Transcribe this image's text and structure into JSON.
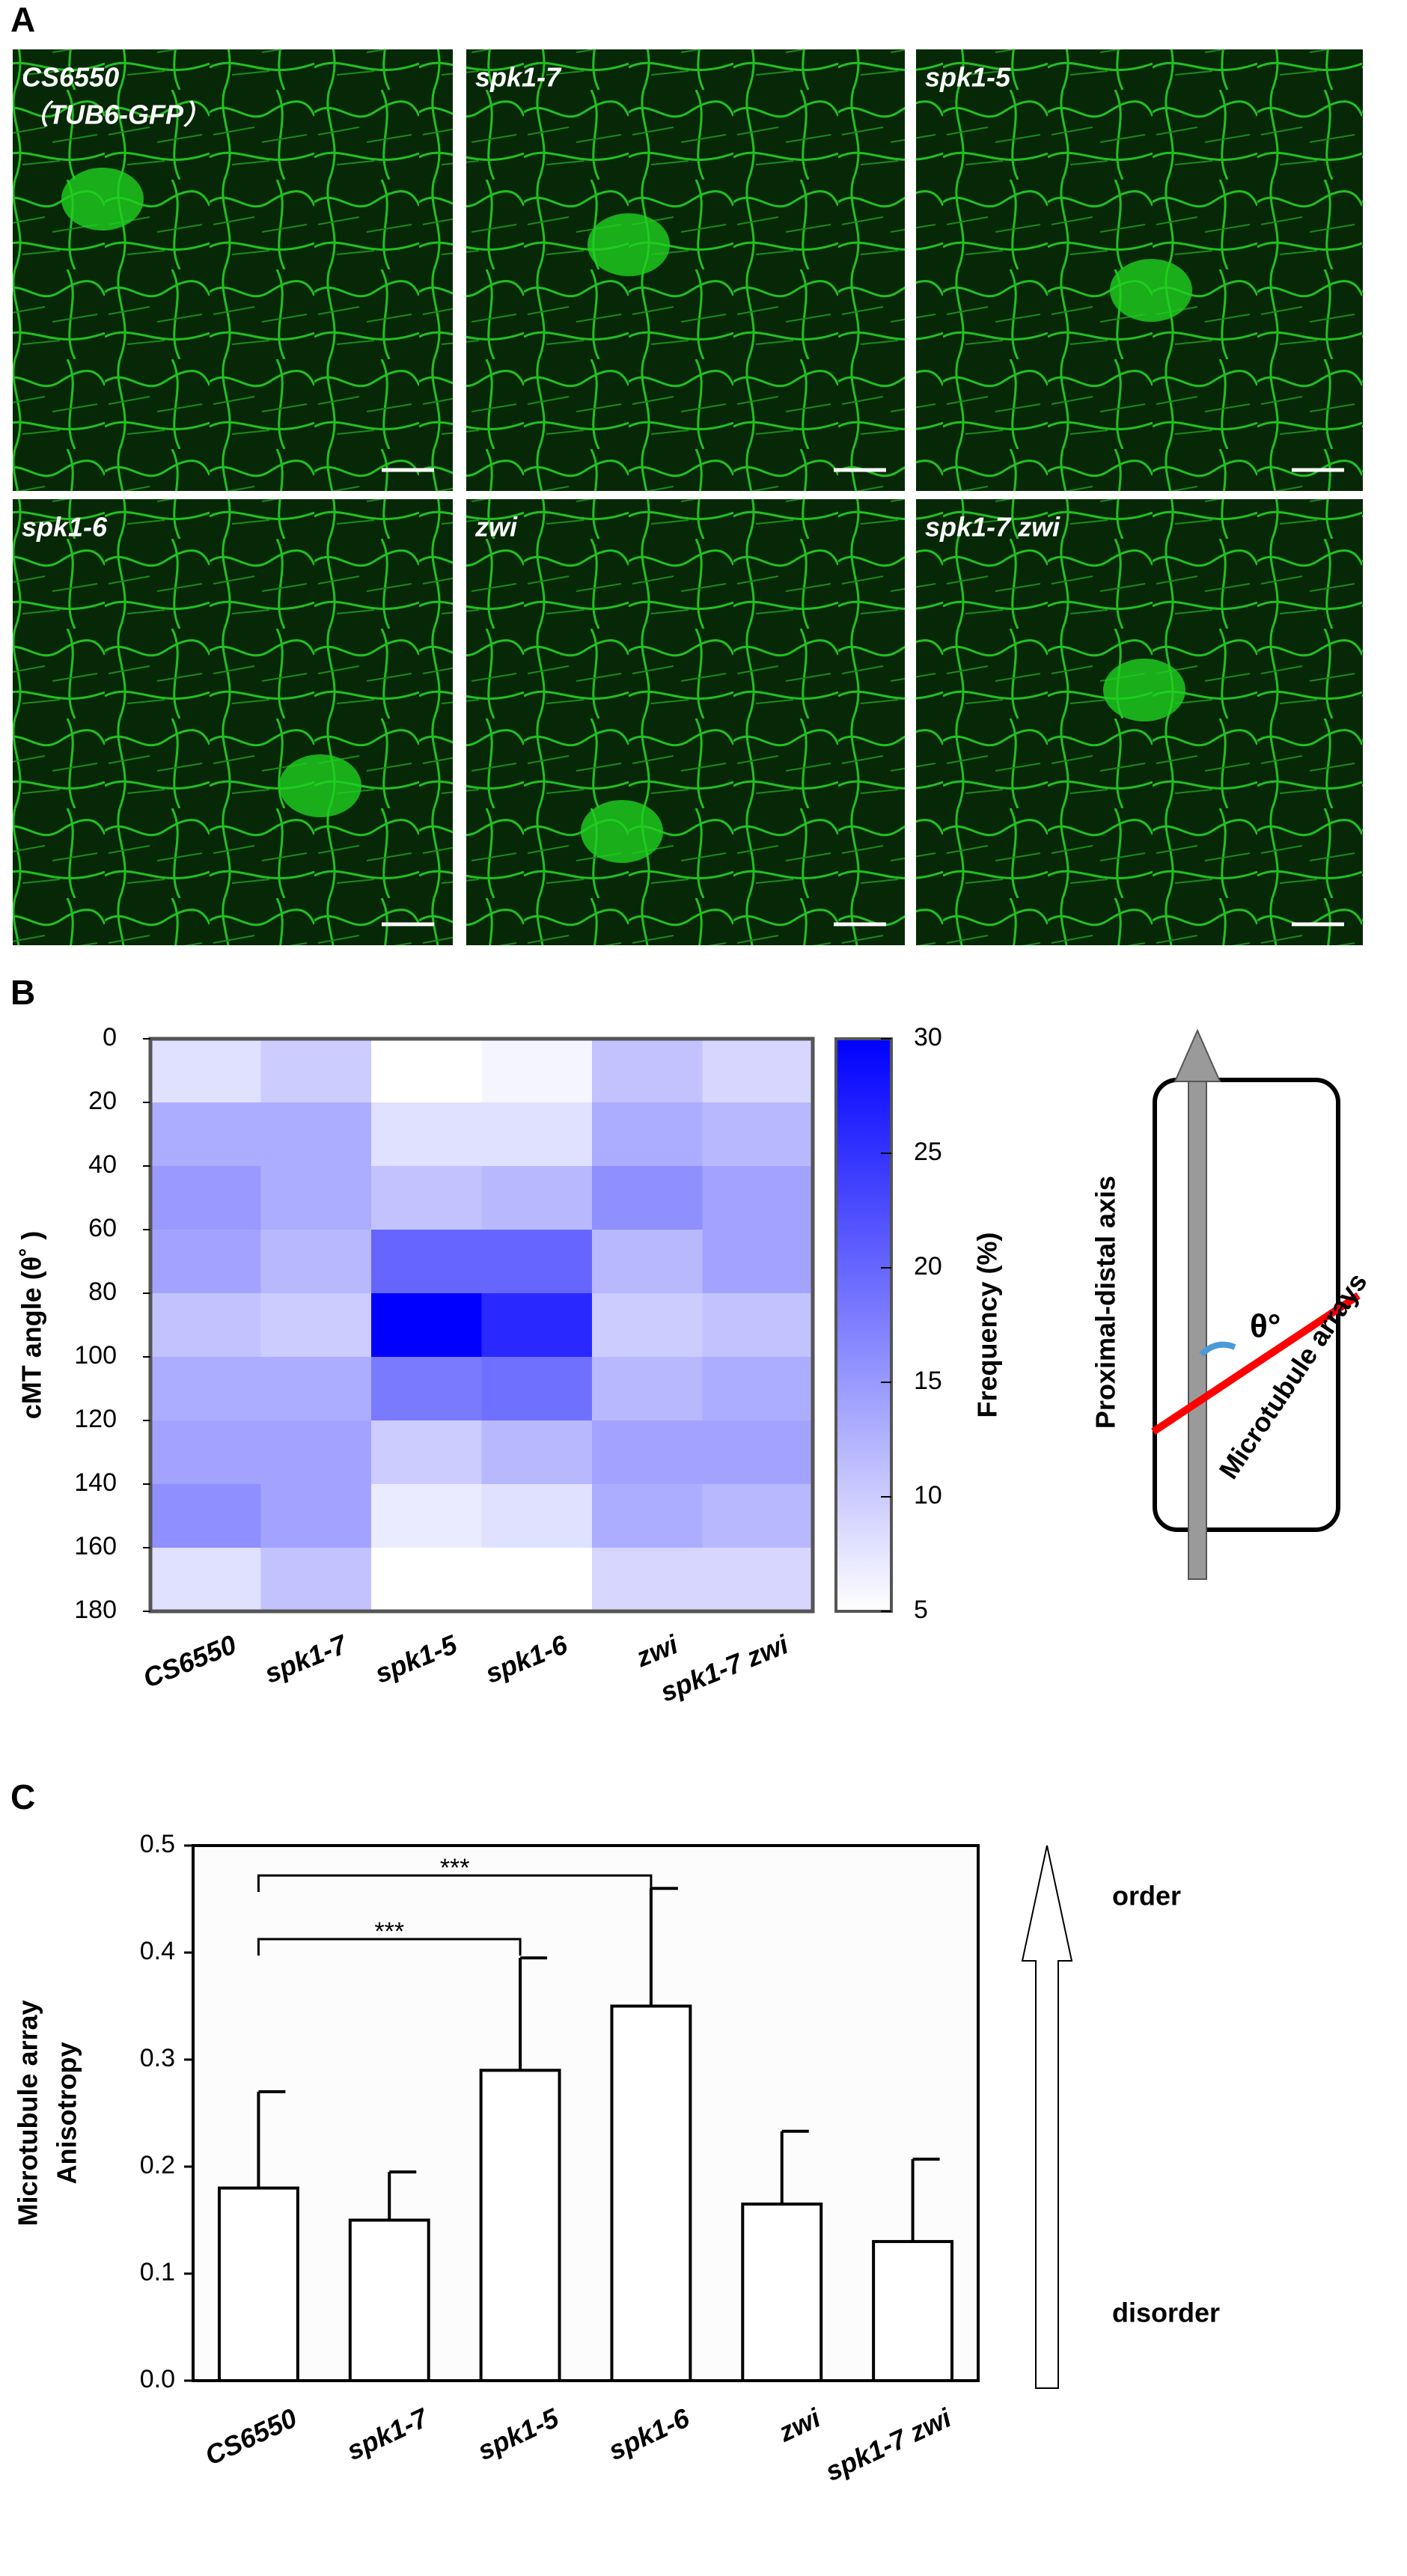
{
  "panel_a": {
    "label": "A",
    "images": [
      {
        "label": "CS6550",
        "sublabel": "（TUB6-GFP）"
      },
      {
        "label": "spk1-7"
      },
      {
        "label": "spk1-5"
      },
      {
        "label": "spk1-6"
      },
      {
        "label": "zwi"
      },
      {
        "label": "spk1-7 zwi"
      }
    ]
  },
  "panel_b_label": "B",
  "panel_c_label": "C",
  "panel_b_diagram": {
    "axis_label": "Proximal-distal axis",
    "array_label": "Microtubule arrays",
    "angle_label": "θ°"
  },
  "chart_data": [
    {
      "type": "heatmap",
      "categories": [
        "CS6550",
        "spk1-7",
        "spk1-5",
        "spk1-6",
        "zwi",
        "spk1-7 zwi"
      ],
      "ylabel": "cMT angle (θ˚ )",
      "ylim": [
        0,
        180
      ],
      "yticks": [
        0,
        20,
        40,
        60,
        80,
        100,
        120,
        140,
        160,
        180
      ],
      "values": [
        [
          8,
          10,
          5,
          6,
          11,
          9
        ],
        [
          13,
          13,
          8,
          8,
          13,
          12
        ],
        [
          15,
          13,
          11,
          12,
          16,
          14
        ],
        [
          14,
          12,
          20,
          20,
          12,
          14
        ],
        [
          11,
          10,
          30,
          26,
          10,
          11
        ],
        [
          13,
          13,
          18,
          19,
          12,
          13
        ],
        [
          14,
          14,
          10,
          12,
          14,
          14
        ],
        [
          16,
          14,
          7,
          8,
          13,
          12
        ],
        [
          8,
          11,
          5,
          5,
          9,
          9
        ]
      ],
      "colorbar_label": "Frequency (%)",
      "zlim": [
        5,
        30
      ],
      "zticks": [
        5,
        10,
        15,
        20,
        25,
        30
      ],
      "colors": [
        "#ffffff",
        "#0000ff"
      ]
    },
    {
      "type": "bar",
      "categories": [
        "CS6550",
        "spk1-7",
        "spk1-5",
        "spk1-6",
        "zwi",
        "spk1-7 zwi"
      ],
      "values": [
        0.18,
        0.15,
        0.29,
        0.35,
        0.165,
        0.13
      ],
      "errors": [
        0.09,
        0.045,
        0.105,
        0.11,
        0.068,
        0.077
      ],
      "color": "#ffffff",
      "ylabel": [
        "Microtubule  array",
        "Anisotropy"
      ],
      "ylim": [
        0,
        0.5
      ],
      "yticks": [
        {
          "value": 0,
          "label": "0.0"
        },
        0.1,
        0.2,
        0.3,
        0.4,
        0.5
      ],
      "significance": [
        "***",
        "***"
      ],
      "arrow_labels": [
        "order",
        "disorder"
      ]
    }
  ]
}
